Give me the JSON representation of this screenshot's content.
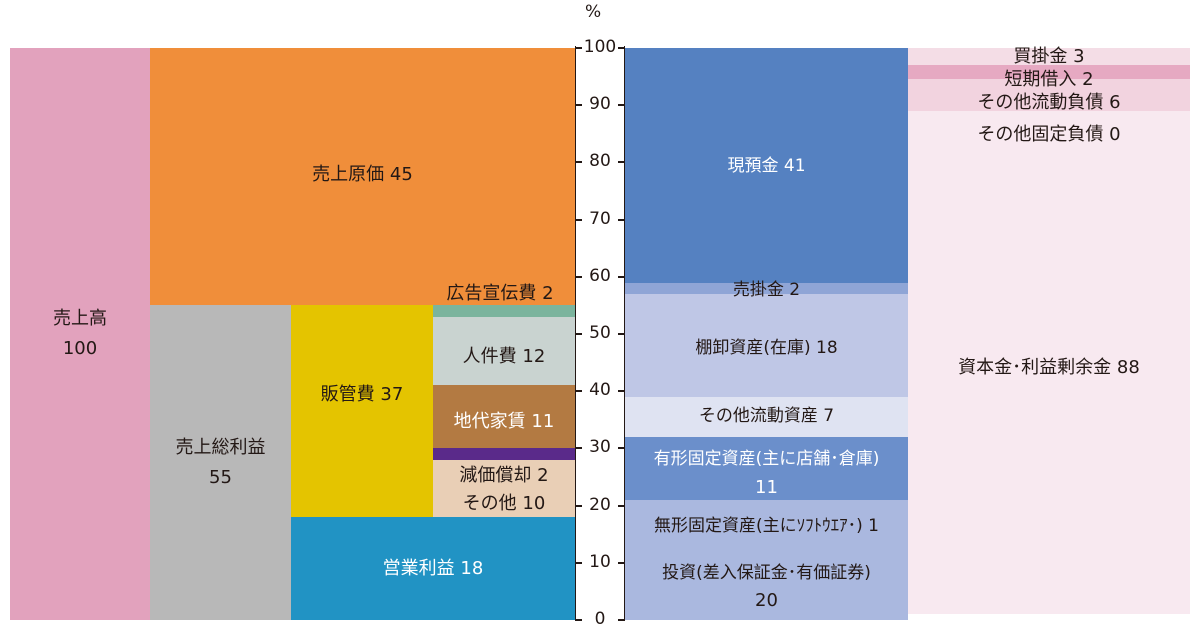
{
  "chart_data": {
    "type": "mekko",
    "unit": "%",
    "y_range": [
      0,
      100
    ],
    "y_ticks": [
      "0",
      "10",
      "20",
      "30",
      "40",
      "50",
      "60",
      "70",
      "80",
      "90",
      "100"
    ],
    "income_statement": {
      "sales": {
        "label": "売上高",
        "value": "100"
      },
      "cogs": {
        "label": "売上原価 45",
        "value": 45
      },
      "gross_profit": {
        "label": "売上総利益",
        "value": "55"
      },
      "sga": {
        "label": "販管費 37",
        "value": 37
      },
      "operating_profit": {
        "label": "営業利益 18",
        "value": 18
      },
      "sga_breakdown": [
        {
          "label": "広告宣伝費 2",
          "value": 2,
          "color": "#7bb49d"
        },
        {
          "label": "人件費 12",
          "value": 12,
          "color": "#c9d3d0"
        },
        {
          "label": "地代家賃 11",
          "value": 11,
          "color": "#b37a42"
        },
        {
          "label": "減価償却 2",
          "value": 2,
          "color": "#5a2a8a"
        },
        {
          "label": "その他 10",
          "value": 10,
          "color": "#e9cfb6"
        }
      ]
    },
    "balance_sheet": {
      "assets": [
        {
          "label": "現預金 41",
          "value": 41,
          "color": "#5581c1"
        },
        {
          "label": "売掛金 2",
          "value": 2,
          "color": "#8fa5d6"
        },
        {
          "label": "棚卸資産(在庫) 18",
          "value": 18,
          "color": "#bfc7e6"
        },
        {
          "label": "その他流動資産 7",
          "value": 7,
          "color": "#dfe3f2"
        },
        {
          "label": "有形固定資産(主に店舗･倉庫)",
          "label2": "11",
          "value": 11,
          "color": "#6b8fcb"
        },
        {
          "label": "無形固定資産(主にｿﾌﾄｳｴｱ･) 1",
          "value": 1,
          "color": "#aab8df"
        },
        {
          "label": "投資(差入保証金･有価証券)",
          "label2": "20",
          "value": 20,
          "color": "#aab8df"
        }
      ],
      "liabilities": [
        {
          "label": "買掛金 3",
          "value": 3,
          "color": "#f4dde6"
        },
        {
          "label": "短期借入 2",
          "value": 2,
          "color": "#e6a9c2"
        },
        {
          "label": "その他流動負債 6",
          "value": 6,
          "color": "#f2d3df"
        },
        {
          "label": "その他固定負債 0",
          "value": 0,
          "color": "#e6a9c2"
        },
        {
          "label": "資本金･利益剰余金 88",
          "value": 88,
          "color": "#f8e9f0"
        }
      ]
    },
    "colors": {
      "sales": "#e2a2bd",
      "cogs": "#f08e3a",
      "gross_profit": "#b8b8b8",
      "sga": "#e4c400",
      "operating_profit": "#2193c4"
    }
  }
}
